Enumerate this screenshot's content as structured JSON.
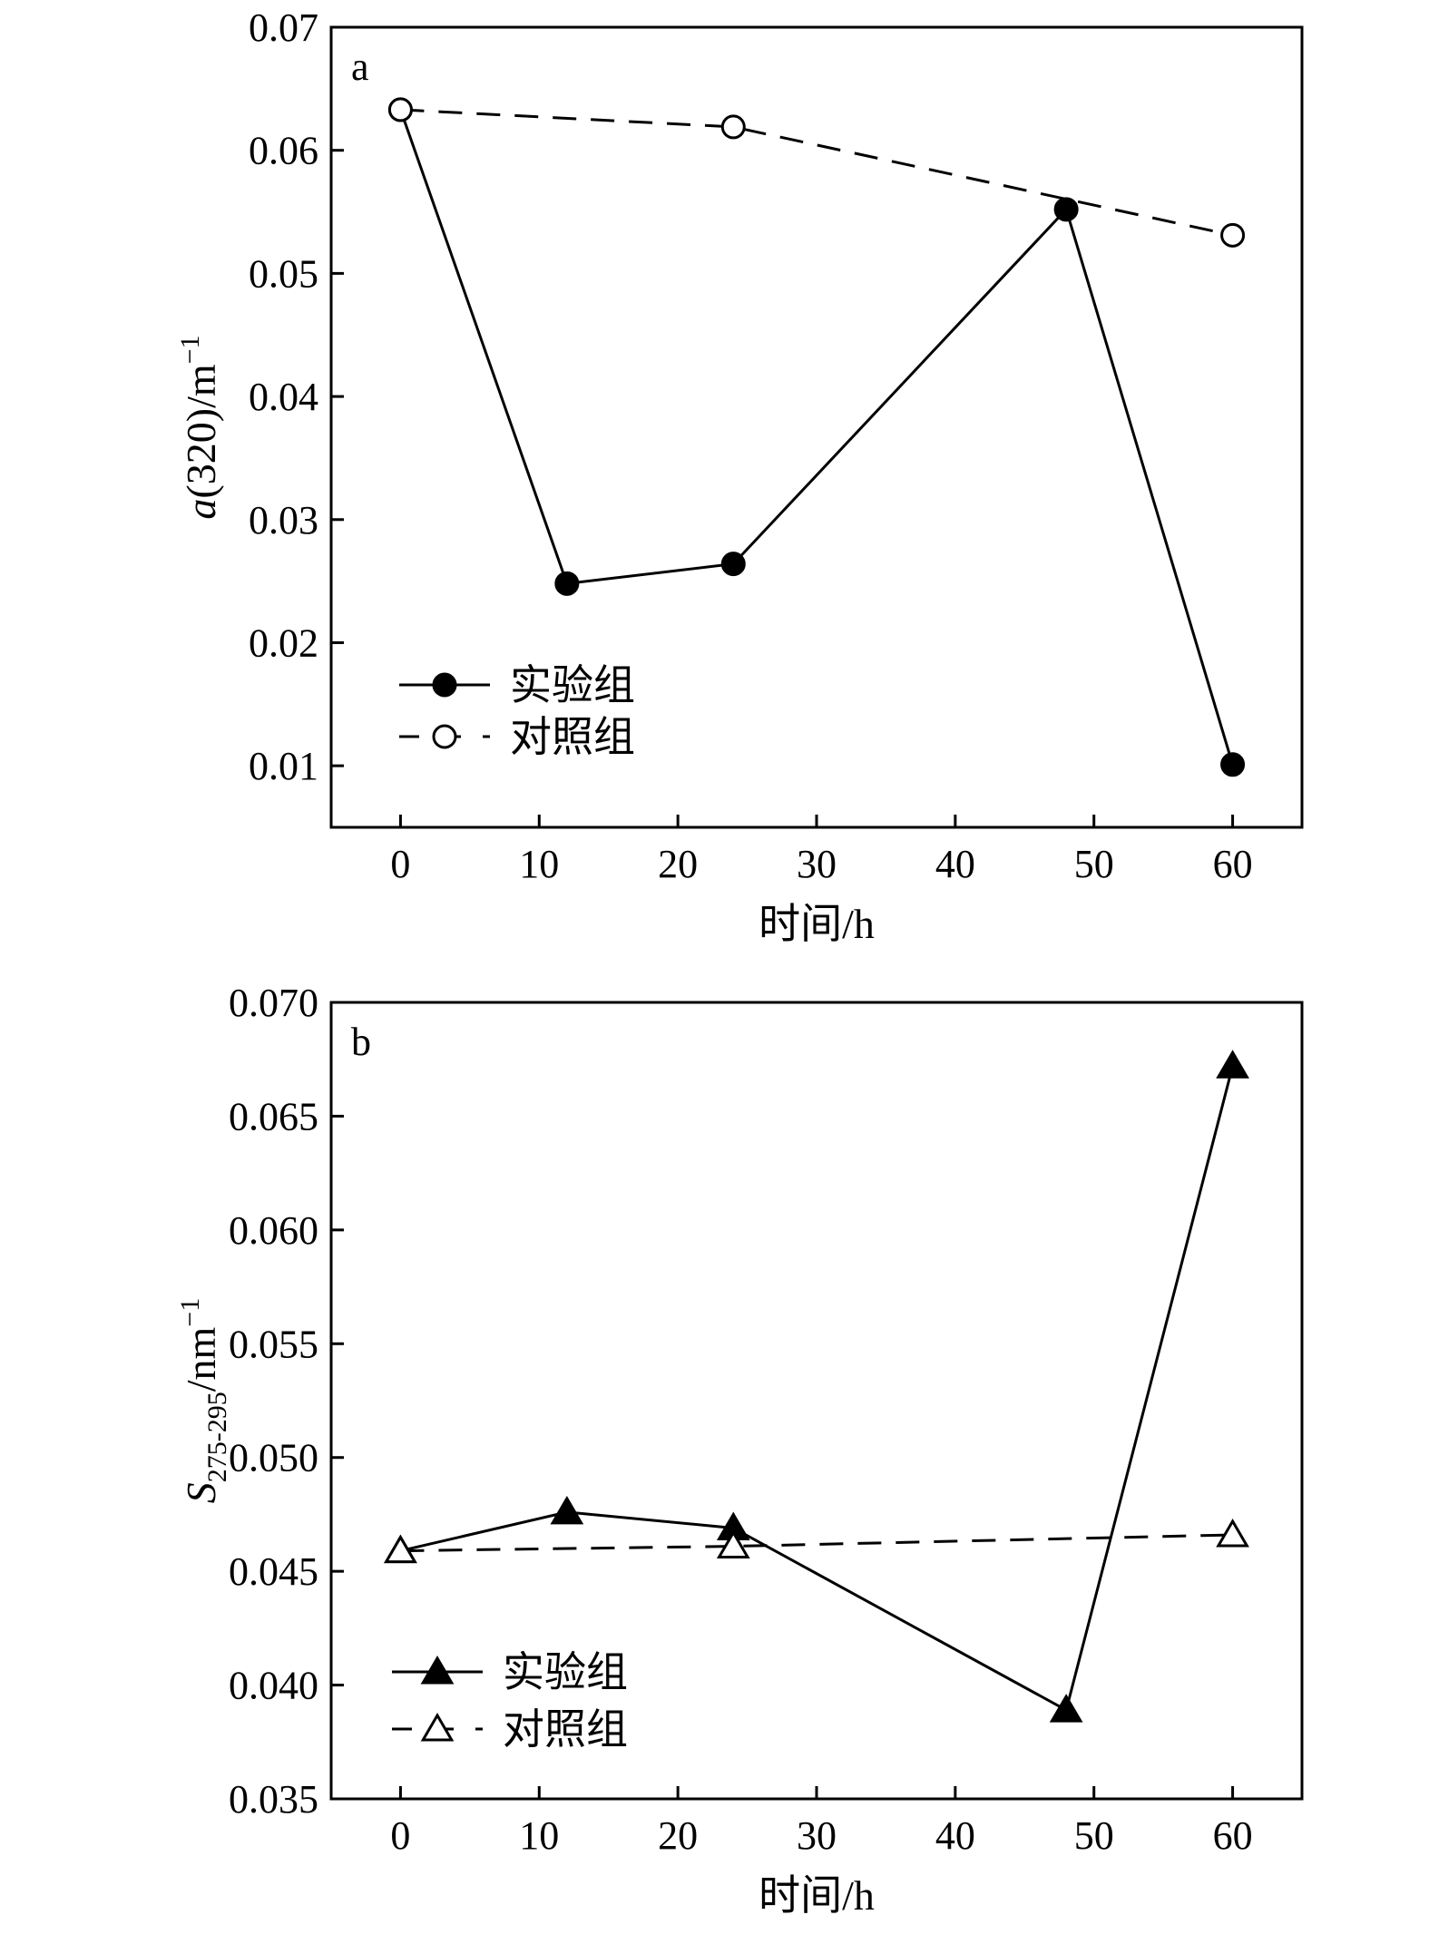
{
  "chart_data": [
    {
      "type": "line",
      "panel_label": "a",
      "xlabel": "时间/h",
      "ylabel_parts": [
        {
          "text": "a",
          "style": "italic"
        },
        {
          "text": "(320)/m"
        },
        {
          "text": "−1",
          "style": "sup"
        }
      ],
      "xlim": [
        -5,
        65
      ],
      "ylim": [
        0.005,
        0.07
      ],
      "xticks": [
        0,
        10,
        20,
        30,
        40,
        50,
        60
      ],
      "yticks": [
        0.01,
        0.02,
        0.03,
        0.04,
        0.05,
        0.06,
        0.07
      ],
      "xtick_labels": [
        "0",
        "10",
        "20",
        "30",
        "40",
        "50",
        "60"
      ],
      "ytick_labels": [
        "0.01",
        "0.02",
        "0.03",
        "0.04",
        "0.05",
        "0.06",
        "0.07"
      ],
      "legend_position": "lower-left",
      "series": [
        {
          "name": "实验组",
          "line": "solid",
          "marker": "circle-filled",
          "x": [
            0,
            12,
            24,
            48,
            60
          ],
          "y": [
            0.0633,
            0.0248,
            0.0264,
            0.0552,
            0.0101
          ]
        },
        {
          "name": "对照组",
          "line": "dashed",
          "marker": "circle-open",
          "x": [
            0,
            24,
            60
          ],
          "y": [
            0.0633,
            0.0619,
            0.0531
          ]
        }
      ]
    },
    {
      "type": "line",
      "panel_label": "b",
      "xlabel": "时间/h",
      "ylabel_parts": [
        {
          "text": "S",
          "style": "italic"
        },
        {
          "text": "275-295",
          "style": "sub"
        },
        {
          "text": "/nm"
        },
        {
          "text": "−1",
          "style": "sup"
        }
      ],
      "xlim": [
        -5,
        65
      ],
      "ylim": [
        0.035,
        0.07
      ],
      "xticks": [
        0,
        10,
        20,
        30,
        40,
        50,
        60
      ],
      "yticks": [
        0.035,
        0.04,
        0.045,
        0.05,
        0.055,
        0.06,
        0.065,
        0.07
      ],
      "xtick_labels": [
        "0",
        "10",
        "20",
        "30",
        "40",
        "50",
        "60"
      ],
      "ytick_labels": [
        "0.035",
        "0.040",
        "0.045",
        "0.050",
        "0.055",
        "0.060",
        "0.065",
        "0.070"
      ],
      "legend_position": "lower-left",
      "series": [
        {
          "name": "实验组",
          "line": "solid",
          "marker": "triangle-filled",
          "x": [
            0,
            12,
            24,
            48,
            60
          ],
          "y": [
            0.0459,
            0.0476,
            0.0469,
            0.0389,
            0.0672
          ]
        },
        {
          "name": "对照组",
          "line": "dashed",
          "marker": "triangle-open",
          "x": [
            0,
            24,
            60
          ],
          "y": [
            0.0459,
            0.0461,
            0.0466
          ]
        }
      ]
    }
  ]
}
